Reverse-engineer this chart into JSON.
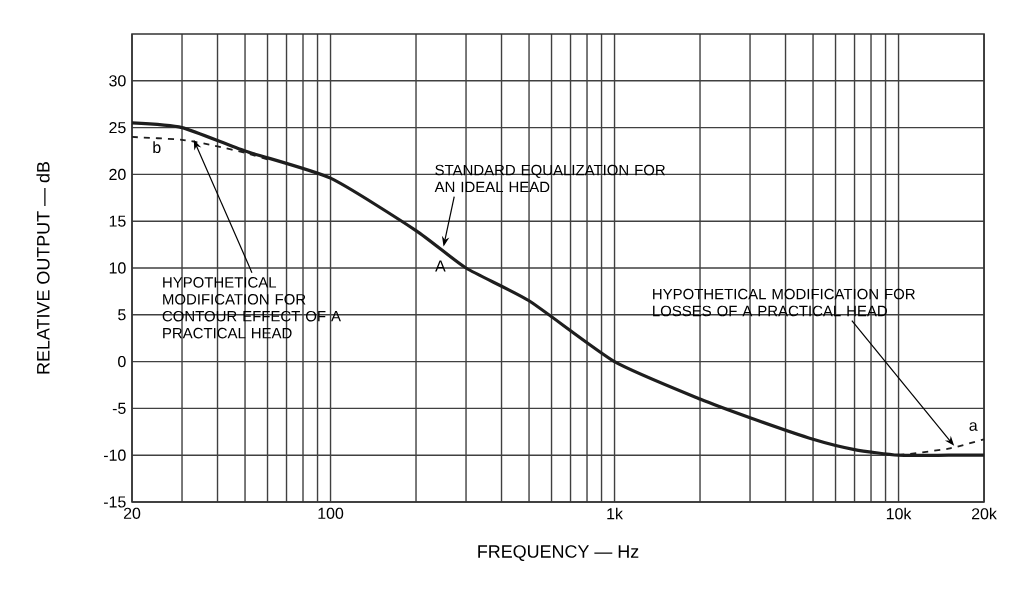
{
  "chart_data": {
    "type": "line",
    "xlabel": "FREQUENCY — Hz",
    "ylabel": "RELATIVE OUTPUT — dB",
    "log": "x",
    "grid": true,
    "legend": false,
    "marker": "none",
    "xlim": [
      20,
      20000
    ],
    "ylim": [
      -15,
      35
    ],
    "xticks": [
      20,
      {
        "value": 30,
        "label": null
      },
      {
        "value": 40,
        "label": null
      },
      {
        "value": 50,
        "label": null
      },
      {
        "value": 60,
        "label": null
      },
      {
        "value": 70,
        "label": null
      },
      {
        "value": 80,
        "label": null
      },
      {
        "value": 90,
        "label": null
      },
      100,
      {
        "value": 200,
        "label": null
      },
      {
        "value": 300,
        "label": null
      },
      {
        "value": 400,
        "label": null
      },
      {
        "value": 500,
        "label": null
      },
      {
        "value": 600,
        "label": null
      },
      {
        "value": 700,
        "label": null
      },
      {
        "value": 800,
        "label": null
      },
      {
        "value": 900,
        "label": null
      },
      {
        "value": 1000,
        "label": "1k"
      },
      {
        "value": 2000,
        "label": null
      },
      {
        "value": 3000,
        "label": null
      },
      {
        "value": 4000,
        "label": null
      },
      {
        "value": 5000,
        "label": null
      },
      {
        "value": 6000,
        "label": null
      },
      {
        "value": 7000,
        "label": null
      },
      {
        "value": 8000,
        "label": null
      },
      {
        "value": 9000,
        "label": null
      },
      {
        "value": 10000,
        "label": "10k"
      },
      {
        "value": 20000,
        "label": "20k"
      }
    ],
    "yticks": [
      -15,
      -10,
      -5,
      0,
      5,
      10,
      15,
      20,
      25,
      30
    ],
    "series": [
      {
        "name": "A",
        "color": "#1e1e1e",
        "line_style": "solid",
        "x": [
          20,
          30,
          50,
          100,
          200,
          300,
          500,
          1000,
          2000,
          3000,
          5000,
          7000,
          10000,
          15000,
          20000
        ],
        "values": [
          25.5,
          25,
          22.5,
          19.6,
          14,
          10,
          6.5,
          0,
          -4,
          -6,
          -8.3,
          -9.4,
          -10,
          -10,
          -10
        ]
      },
      {
        "name": "b",
        "color": "#1e1e1e",
        "line_style": "dashed",
        "x": [
          20,
          30,
          40,
          50,
          60
        ],
        "values": [
          24,
          23.7,
          23,
          22.3,
          21.6
        ]
      },
      {
        "name": "a",
        "color": "#1e1e1e",
        "line_style": "dashed",
        "x": [
          10000,
          15000,
          20000
        ],
        "values": [
          -10,
          -9.3,
          -8.3
        ]
      }
    ],
    "annotations": [
      {
        "text": "STANDARD EQUALIZATION FOR AN IDEAL HEAD",
        "x": 250,
        "y": 12.3
      },
      {
        "text": "HYPOTHETICAL MODIFICATION FOR CONTOUR EFFECT OF A PRACTICAL HEAD",
        "x": 33,
        "y": 23.7
      },
      {
        "text": "HYPOTHETICAL MODIFICATION FOR LOSSES OF A PRACTICAL HEAD",
        "x": 15700,
        "y": -9
      }
    ]
  }
}
